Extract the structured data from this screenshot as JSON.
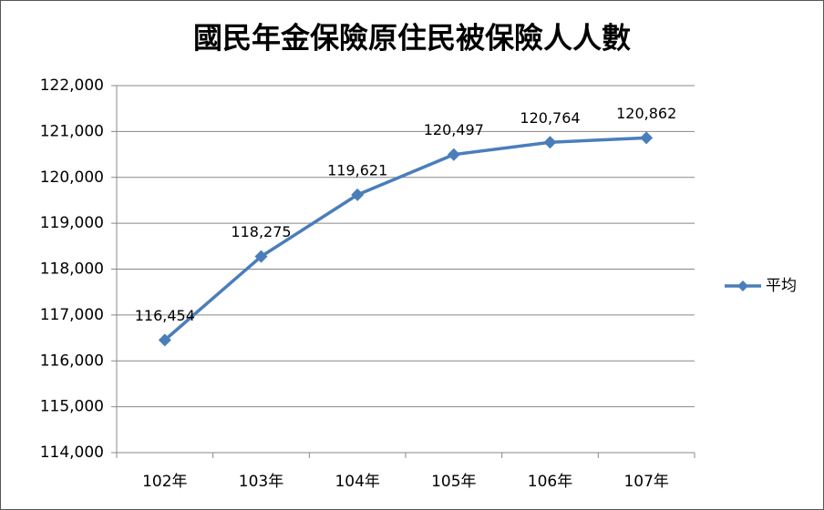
{
  "chart_data": {
    "type": "line",
    "title": "國民年金保險原住民被保險人人數",
    "categories": [
      "102年",
      "103年",
      "104年",
      "105年",
      "106年",
      "107年"
    ],
    "series": [
      {
        "name": "平均",
        "color": "#4a7ebb",
        "values": [
          116454,
          118275,
          119621,
          120497,
          120764,
          120862
        ],
        "value_labels": [
          "116,454",
          "118,275",
          "119,621",
          "120,497",
          "120,764",
          "120,862"
        ]
      }
    ],
    "ylim": [
      114000,
      122000
    ],
    "yticks": [
      {
        "value": 114000,
        "label": "114,000"
      },
      {
        "value": 115000,
        "label": "115,000"
      },
      {
        "value": 116000,
        "label": "116,000"
      },
      {
        "value": 117000,
        "label": "117,000"
      },
      {
        "value": 118000,
        "label": "118,000"
      },
      {
        "value": 119000,
        "label": "119,000"
      },
      {
        "value": 120000,
        "label": "120,000"
      },
      {
        "value": 121000,
        "label": "121,000"
      },
      {
        "value": 122000,
        "label": "122,000"
      }
    ],
    "grid": true,
    "legend": "right"
  }
}
